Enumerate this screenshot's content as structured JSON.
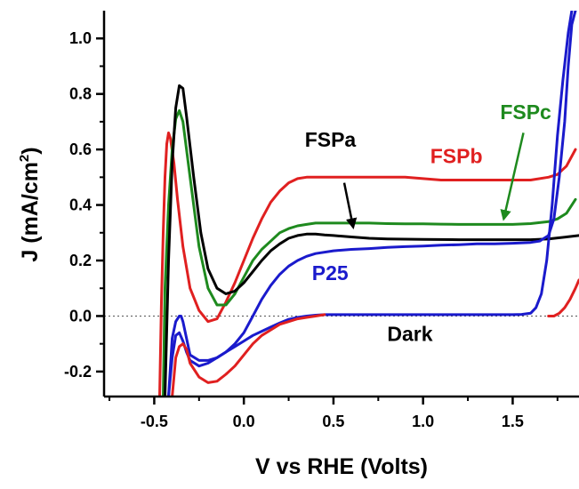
{
  "chart_data": {
    "type": "line",
    "title": "",
    "xlabel": "V vs RHE (Volts)",
    "ylabel_main": "J (mA/cm",
    "ylabel_sup": "2",
    "ylabel_end": ")",
    "xlim": [
      -0.78,
      1.87
    ],
    "ylim": [
      -0.29,
      1.1
    ],
    "xticks": [
      -0.5,
      0.0,
      0.5,
      1.0,
      1.5
    ],
    "xtick_labels": [
      "-0.5",
      "0.0",
      "0.5",
      "1.0",
      "1.5"
    ],
    "yticks": [
      -0.2,
      0.0,
      0.2,
      0.4,
      0.6,
      0.8,
      1.0
    ],
    "ytick_labels": [
      "-0.2",
      "0.0",
      "0.2",
      "0.4",
      "0.6",
      "0.8",
      "1.0"
    ],
    "zero_reference_line": true,
    "series": [
      {
        "name": "FSPb",
        "color": "#e02020",
        "x": [
          -0.47,
          -0.46,
          -0.45,
          -0.44,
          -0.43,
          -0.42,
          -0.41,
          -0.39,
          -0.37,
          -0.34,
          -0.3,
          -0.25,
          -0.2,
          -0.15,
          -0.1,
          -0.05,
          0.0,
          0.05,
          0.1,
          0.15,
          0.2,
          0.25,
          0.3,
          0.35,
          0.4,
          0.45,
          0.5,
          0.6,
          0.7,
          0.8,
          0.9,
          1.0,
          1.1,
          1.2,
          1.3,
          1.4,
          1.5,
          1.6,
          1.7,
          1.75,
          1.8,
          1.85
        ],
        "y": [
          -0.29,
          0.05,
          0.3,
          0.5,
          0.62,
          0.66,
          0.64,
          0.55,
          0.42,
          0.25,
          0.1,
          0.02,
          -0.02,
          -0.01,
          0.05,
          0.12,
          0.2,
          0.28,
          0.35,
          0.41,
          0.45,
          0.48,
          0.495,
          0.5,
          0.5,
          0.5,
          0.5,
          0.5,
          0.5,
          0.5,
          0.5,
          0.495,
          0.49,
          0.49,
          0.49,
          0.49,
          0.49,
          0.49,
          0.5,
          0.51,
          0.54,
          0.6
        ]
      },
      {
        "name": "FSPc",
        "color": "#1e8a1e",
        "x": [
          -0.45,
          -0.44,
          -0.42,
          -0.4,
          -0.38,
          -0.36,
          -0.34,
          -0.3,
          -0.25,
          -0.2,
          -0.15,
          -0.1,
          -0.05,
          0.0,
          0.05,
          0.1,
          0.15,
          0.2,
          0.25,
          0.3,
          0.35,
          0.4,
          0.5,
          0.6,
          0.7,
          0.8,
          0.9,
          1.0,
          1.1,
          1.2,
          1.3,
          1.4,
          1.5,
          1.6,
          1.7,
          1.75,
          1.8,
          1.85
        ],
        "y": [
          -0.29,
          0.1,
          0.4,
          0.6,
          0.71,
          0.74,
          0.7,
          0.5,
          0.25,
          0.1,
          0.04,
          0.04,
          0.08,
          0.14,
          0.2,
          0.24,
          0.27,
          0.3,
          0.315,
          0.325,
          0.33,
          0.335,
          0.335,
          0.335,
          0.335,
          0.333,
          0.332,
          0.332,
          0.331,
          0.33,
          0.33,
          0.33,
          0.33,
          0.333,
          0.34,
          0.35,
          0.37,
          0.42
        ]
      },
      {
        "name": "FSPa",
        "color": "#000000",
        "x": [
          -0.44,
          -0.42,
          -0.4,
          -0.38,
          -0.36,
          -0.34,
          -0.32,
          -0.28,
          -0.24,
          -0.2,
          -0.15,
          -0.1,
          -0.05,
          0.0,
          0.05,
          0.1,
          0.15,
          0.2,
          0.25,
          0.3,
          0.35,
          0.4,
          0.45,
          0.5,
          0.6,
          0.7,
          0.8,
          0.9,
          1.0,
          1.2,
          1.4,
          1.6,
          1.7,
          1.8,
          1.87
        ],
        "y": [
          -0.29,
          0.2,
          0.55,
          0.75,
          0.83,
          0.82,
          0.72,
          0.5,
          0.3,
          0.17,
          0.1,
          0.08,
          0.09,
          0.12,
          0.16,
          0.2,
          0.235,
          0.26,
          0.28,
          0.29,
          0.295,
          0.295,
          0.292,
          0.29,
          0.285,
          0.28,
          0.278,
          0.277,
          0.276,
          0.275,
          0.275,
          0.275,
          0.278,
          0.285,
          0.29
        ]
      },
      {
        "name": "P25",
        "color": "#1a1acc",
        "x": [
          -0.42,
          -0.4,
          -0.38,
          -0.36,
          -0.34,
          -0.32,
          -0.3,
          -0.25,
          -0.2,
          -0.15,
          -0.1,
          -0.05,
          0.0,
          0.05,
          0.1,
          0.15,
          0.2,
          0.25,
          0.3,
          0.35,
          0.4,
          0.5,
          0.6,
          0.7,
          0.8,
          0.9,
          1.0,
          1.1,
          1.2,
          1.3,
          1.4,
          1.5,
          1.6,
          1.65,
          1.7,
          1.73,
          1.76,
          1.79,
          1.81,
          1.83,
          1.85
        ],
        "y": [
          -0.29,
          -0.15,
          -0.07,
          -0.06,
          -0.09,
          -0.13,
          -0.16,
          -0.18,
          -0.17,
          -0.15,
          -0.13,
          -0.1,
          -0.06,
          0.0,
          0.06,
          0.11,
          0.15,
          0.18,
          0.2,
          0.215,
          0.225,
          0.235,
          0.24,
          0.243,
          0.247,
          0.25,
          0.252,
          0.255,
          0.257,
          0.26,
          0.26,
          0.262,
          0.265,
          0.27,
          0.29,
          0.35,
          0.5,
          0.7,
          0.9,
          1.05,
          1.1
        ]
      },
      {
        "name": "Dark",
        "color": "#1a1acc",
        "x": [
          -0.42,
          -0.4,
          -0.38,
          -0.36,
          -0.35,
          -0.34,
          -0.32,
          -0.3,
          -0.25,
          -0.2,
          -0.15,
          -0.1,
          -0.05,
          0.0,
          0.05,
          0.1,
          0.15,
          0.2,
          0.25,
          0.3,
          0.35,
          0.4,
          0.45,
          0.5,
          0.6,
          0.8,
          1.0,
          1.2,
          1.4,
          1.5,
          1.55,
          1.6,
          1.63,
          1.66,
          1.69,
          1.72,
          1.75,
          1.78,
          1.81,
          1.83
        ],
        "y": [
          -0.29,
          -0.08,
          -0.02,
          0.0,
          0.0,
          -0.02,
          -0.08,
          -0.14,
          -0.16,
          -0.16,
          -0.15,
          -0.13,
          -0.11,
          -0.09,
          -0.07,
          -0.055,
          -0.04,
          -0.025,
          -0.012,
          -0.005,
          0.0,
          0.003,
          0.005,
          0.005,
          0.005,
          0.005,
          0.005,
          0.005,
          0.005,
          0.005,
          0.006,
          0.01,
          0.03,
          0.08,
          0.2,
          0.4,
          0.65,
          0.85,
          1.02,
          1.1
        ]
      },
      {
        "name": "FSPb dark",
        "color": "#e02020",
        "x": [
          -0.4,
          -0.38,
          -0.36,
          -0.34,
          -0.32,
          -0.3,
          -0.25,
          -0.2,
          -0.15,
          -0.1,
          -0.05,
          0.0,
          0.05,
          0.1,
          0.15,
          0.2,
          0.25,
          0.3,
          0.35,
          0.4,
          0.45
        ],
        "y": [
          -0.29,
          -0.15,
          -0.11,
          -0.1,
          -0.12,
          -0.17,
          -0.22,
          -0.24,
          -0.235,
          -0.21,
          -0.18,
          -0.14,
          -0.1,
          -0.07,
          -0.05,
          -0.03,
          -0.02,
          -0.01,
          -0.005,
          0.0,
          0.005
        ]
      },
      {
        "name": "FSPb dark anodic",
        "color": "#e02020",
        "x": [
          1.7,
          1.73,
          1.76,
          1.79,
          1.82,
          1.85,
          1.87
        ],
        "y": [
          0.0,
          0.0,
          0.01,
          0.03,
          0.06,
          0.1,
          0.13
        ]
      }
    ],
    "annotations": [
      {
        "text": "FSPa",
        "color": "#000000",
        "x": 0.34,
        "y": 0.61,
        "arrow": true,
        "arrow_from": [
          0.56,
          0.48
        ],
        "arrow_to": [
          0.61,
          0.32
        ]
      },
      {
        "text": "FSPb",
        "color": "#e02020",
        "x": 1.04,
        "y": 0.55
      },
      {
        "text": "FSPc",
        "color": "#1e8a1e",
        "x": 1.43,
        "y": 0.71,
        "arrow": true,
        "arrow_from": [
          1.56,
          0.66
        ],
        "arrow_to": [
          1.45,
          0.35
        ]
      },
      {
        "text": "P25",
        "color": "#1a1acc",
        "x": 0.38,
        "y": 0.13
      },
      {
        "text": "Dark",
        "color": "#000000",
        "x": 0.8,
        "y": -0.09
      }
    ]
  }
}
